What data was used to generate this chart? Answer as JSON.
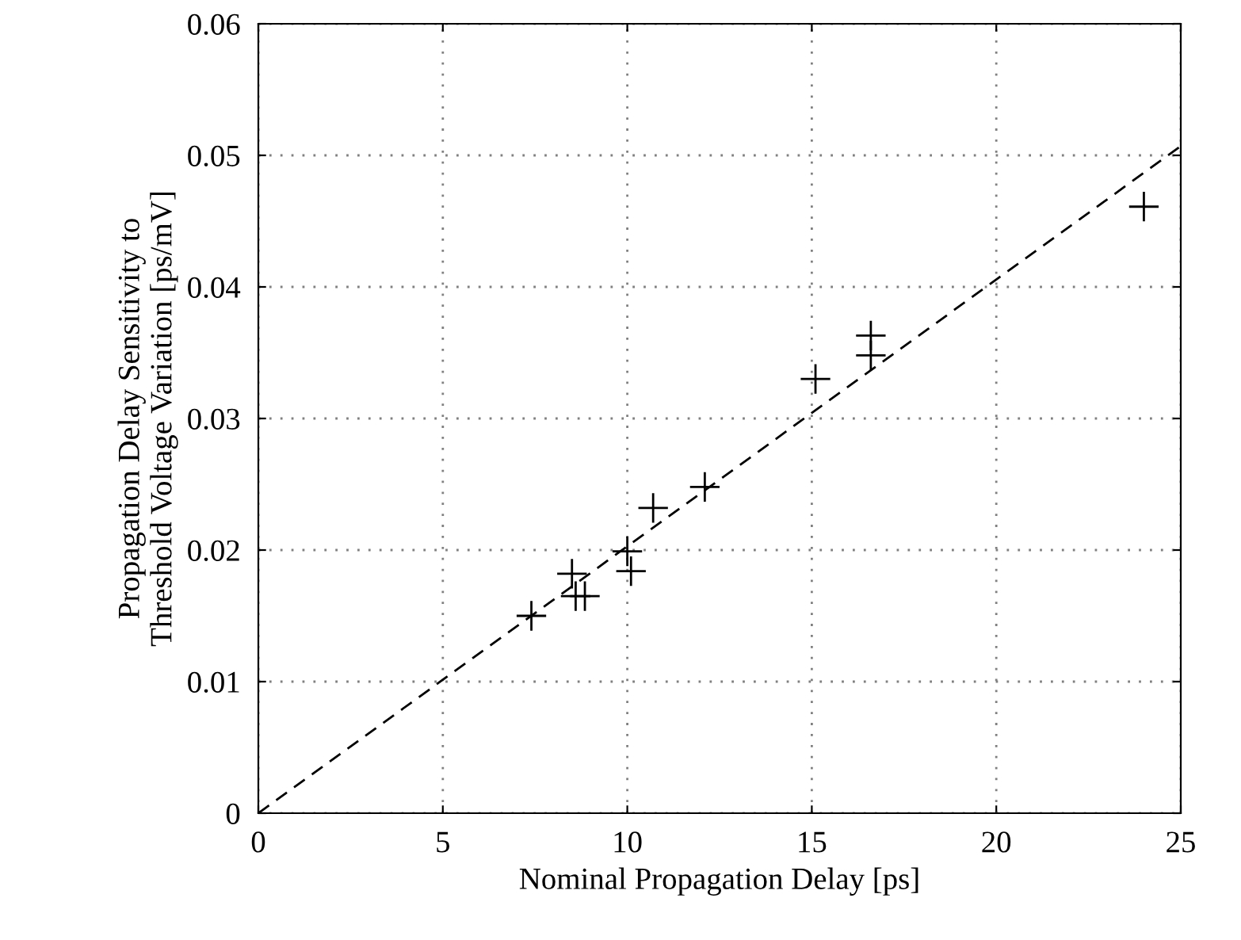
{
  "chart_data": {
    "type": "scatter",
    "xlabel": "Nominal Propagation Delay [ps]",
    "ylabel": "Propagation Delay Sensitivity to\nThreshold Voltage Variation [ps/mV]",
    "xlim": [
      0,
      25
    ],
    "ylim": [
      0,
      0.06
    ],
    "xticks": [
      0,
      5,
      10,
      15,
      20,
      25
    ],
    "yticks": [
      0,
      0.01,
      0.02,
      0.03,
      0.04,
      0.05,
      0.06
    ],
    "grid": true,
    "marker": "cross",
    "series": [
      {
        "color": "#000000",
        "x": [
          7.4,
          8.5,
          8.6,
          8.85,
          10.0,
          10.1,
          10.7,
          12.1,
          15.1,
          16.6,
          16.6,
          24.0
        ],
        "values": [
          0.015,
          0.0182,
          0.0165,
          0.0165,
          0.0199,
          0.0184,
          0.0232,
          0.0248,
          0.033,
          0.0363,
          0.0348,
          0.0461
        ]
      },
      {
        "type": "line",
        "color": "#000000",
        "line_style": "dashed",
        "marker": "none",
        "x": [
          0,
          25
        ],
        "values": [
          0,
          0.0507
        ]
      }
    ]
  }
}
